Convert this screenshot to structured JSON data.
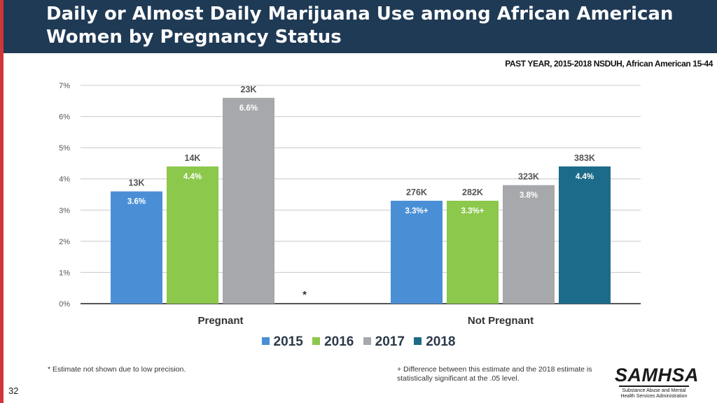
{
  "title": "Daily or Almost Daily Marijuana Use among African American Women by Pregnancy Status",
  "subtitle": "PAST YEAR, 2015-2018  NSDUH, African American 15-44",
  "chart_data": {
    "type": "bar",
    "ylim": [
      0,
      7
    ],
    "yticks": [
      "0%",
      "1%",
      "2%",
      "3%",
      "4%",
      "5%",
      "6%",
      "7%"
    ],
    "categories": [
      "Pregnant",
      "Not Pregnant"
    ],
    "series": [
      {
        "name": "2015",
        "color": "#4a8fd6",
        "values": [
          3.6,
          3.3
        ],
        "labels": [
          "3.6%",
          "3.3%+"
        ],
        "counts": [
          "13K",
          "276K"
        ]
      },
      {
        "name": "2016",
        "color": "#8cc84b",
        "values": [
          4.4,
          3.3
        ],
        "labels": [
          "4.4%",
          "3.3%+"
        ],
        "counts": [
          "14K",
          "282K"
        ]
      },
      {
        "name": "2017",
        "color": "#a6a8ab",
        "values": [
          6.6,
          3.8
        ],
        "labels": [
          "6.6%",
          "3.8%"
        ],
        "counts": [
          "23K",
          "323K"
        ]
      },
      {
        "name": "2018",
        "color": "#1c6b8a",
        "values": [
          null,
          4.4
        ],
        "labels": [
          "*",
          "4.4%"
        ],
        "counts": [
          "",
          "383K"
        ]
      }
    ]
  },
  "legend": [
    "2015",
    "2016",
    "2017",
    "2018"
  ],
  "footnotes": {
    "asterisk": "* Estimate not shown due to low precision.",
    "plus": "+ Difference between this estimate and the 2018 estimate is statistically significant at the .05 level."
  },
  "page_number": "32",
  "logo": {
    "name": "SAMHSA",
    "subtitle": "Substance Abuse and Mental Health Services Administration"
  }
}
